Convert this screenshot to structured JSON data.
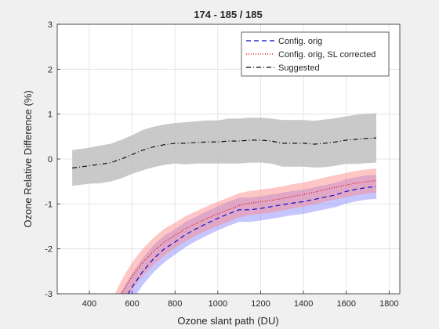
{
  "chart_data": {
    "type": "line",
    "title": "174 - 185 / 185",
    "xlabel": "Ozone slant path (DU)",
    "ylabel": "Ozone Relative Difference (%)",
    "xlim": [
      250,
      1850
    ],
    "ylim": [
      -3,
      3
    ],
    "xticks": [
      "400",
      "600",
      "800",
      "1000",
      "1200",
      "1400",
      "1600",
      "1800"
    ],
    "yticks": [
      "-3",
      "-2",
      "-1",
      "0",
      "1",
      "2",
      "3"
    ],
    "grid": true,
    "legend_position": "top-right",
    "series": [
      {
        "name": "Config. orig",
        "color": "#0000cc",
        "dash": "dashed",
        "band_color": "#8080ff",
        "x": [
          500,
          550,
          600,
          650,
          700,
          750,
          800,
          850,
          900,
          950,
          1000,
          1050,
          1100,
          1150,
          1200,
          1250,
          1300,
          1350,
          1400,
          1450,
          1500,
          1550,
          1600,
          1650,
          1700,
          1740
        ],
        "y": [
          -3.8,
          -3.25,
          -2.85,
          -2.5,
          -2.22,
          -2.0,
          -1.85,
          -1.68,
          -1.55,
          -1.43,
          -1.32,
          -1.22,
          -1.13,
          -1.13,
          -1.1,
          -1.06,
          -1.02,
          -0.98,
          -0.95,
          -0.9,
          -0.85,
          -0.8,
          -0.72,
          -0.67,
          -0.63,
          -0.62
        ],
        "band": [
          0.3,
          0.3,
          0.3,
          0.3,
          0.3,
          0.3,
          0.28,
          0.28,
          0.27,
          0.27,
          0.27,
          0.27,
          0.27,
          0.27,
          0.27,
          0.27,
          0.27,
          0.27,
          0.27,
          0.27,
          0.27,
          0.27,
          0.27,
          0.27,
          0.27,
          0.27
        ]
      },
      {
        "name": "Config. orig, SL corrected",
        "color": "#dd0000",
        "dash": "dotted",
        "band_color": "#ff8080",
        "x": [
          500,
          550,
          600,
          650,
          700,
          750,
          800,
          850,
          900,
          950,
          1000,
          1050,
          1100,
          1150,
          1200,
          1250,
          1300,
          1350,
          1400,
          1450,
          1500,
          1550,
          1600,
          1650,
          1700,
          1740
        ],
        "y": [
          -3.5,
          -3.0,
          -2.6,
          -2.3,
          -2.05,
          -1.85,
          -1.7,
          -1.55,
          -1.43,
          -1.32,
          -1.22,
          -1.13,
          -1.03,
          -0.98,
          -0.95,
          -0.92,
          -0.88,
          -0.83,
          -0.79,
          -0.74,
          -0.68,
          -0.63,
          -0.58,
          -0.53,
          -0.5,
          -0.48
        ],
        "band": [
          0.3,
          0.3,
          0.3,
          0.3,
          0.3,
          0.3,
          0.28,
          0.28,
          0.27,
          0.27,
          0.27,
          0.27,
          0.27,
          0.27,
          0.27,
          0.27,
          0.27,
          0.27,
          0.27,
          0.27,
          0.27,
          0.27,
          0.27,
          0.27,
          0.27,
          0.27
        ]
      },
      {
        "name": "Suggested",
        "color": "#000000",
        "dash": "dashdot",
        "band_color": "#bfbfbf",
        "x": [
          320,
          400,
          450,
          500,
          550,
          600,
          650,
          700,
          750,
          800,
          850,
          900,
          950,
          1000,
          1050,
          1100,
          1150,
          1200,
          1250,
          1300,
          1350,
          1400,
          1450,
          1500,
          1550,
          1600,
          1650,
          1700,
          1740
        ],
        "y": [
          -0.2,
          -0.15,
          -0.12,
          -0.08,
          0.0,
          0.1,
          0.2,
          0.27,
          0.32,
          0.35,
          0.35,
          0.37,
          0.38,
          0.38,
          0.4,
          0.4,
          0.42,
          0.42,
          0.4,
          0.35,
          0.35,
          0.35,
          0.33,
          0.35,
          0.38,
          0.42,
          0.44,
          0.46,
          0.47
        ],
        "band": [
          0.4,
          0.4,
          0.42,
          0.42,
          0.43,
          0.43,
          0.45,
          0.45,
          0.45,
          0.45,
          0.47,
          0.47,
          0.48,
          0.48,
          0.5,
          0.5,
          0.5,
          0.5,
          0.5,
          0.52,
          0.52,
          0.52,
          0.52,
          0.53,
          0.53,
          0.53,
          0.55,
          0.55,
          0.55
        ]
      }
    ]
  }
}
